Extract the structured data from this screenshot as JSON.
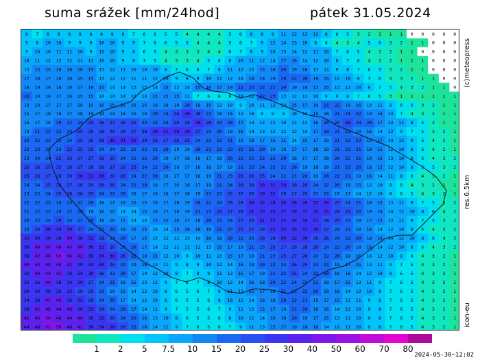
{
  "header": {
    "title": "suma srážek [mm/24hod]",
    "date": "pátek 31.05.2024"
  },
  "side_labels": {
    "credit": "(c)meteopress",
    "resolution": "res.6.5km",
    "model": "icon-eu"
  },
  "legend": {
    "labels": [
      "1",
      "2",
      "5",
      "7.5",
      "10",
      "15",
      "20",
      "25",
      "30",
      "40",
      "50",
      "60",
      "70",
      "80"
    ],
    "colors": [
      "#1ee39a",
      "#10e6c0",
      "#00e0ee",
      "#00c4fa",
      "#0aa6fb",
      "#1288f6",
      "#1a68f2",
      "#2a4ef0",
      "#3b34f0",
      "#5b22ee",
      "#7a18ea",
      "#9a12e4",
      "#c00ad8",
      "#e404d0",
      "#a90c98"
    ]
  },
  "timestamp": "2024-05-30~12:02",
  "map": {
    "region": "Česká republika",
    "value_grid_note": "precipitation totals printed per grid cell (mm)",
    "rows": [
      "8 7 8 8 8 8 8 8 9 8 7 6 6 5 5 4 4 4 4 5 6 8 8 9 11 12 13 12 8 6 5 3 2 1 1 1 0 0 0 0 0",
      "9 8 10 10 9 9 9 10 10 9 9 7 6 6 5 5 4 4 4 5 6 7 9 12 14 13 10 8 6 4 3 4 5 6 3 2 1 1 0 0 0",
      "9 10 10 11 11 10 9 10 10 9 8 6 5 4 3 3 3 4 4 6 7 8 9 10 13 14 12 11 10 7 6 5 4 3 2 1 1 0 0 0 0",
      "10 11 12 12 12 11 11 10 10 9 8 7 5 4 3 3 4 5 6 8 10 11 12 14 17 16 14 12 10 8 7 6 4 3 2 1 1 1 0 0 0",
      "13 15 15 16 18 16 15 13 12 11 10 10 10 8 7 6 6 7 8 11 12 13 15 18 20 19 16 13 11 9 8 7 6 5 3 2 1 1 0 0 0",
      "17 18 17 16 16 15 15 13 12 12 11 11 12 10 9 8 9 10 11 12 14 16 18 19 20 22 20 18 15 12 10 8 7 6 4 3 2 1 1 0 0",
      "18 19 19 18 18 17 16 15 14 14 13 13 14 15 13 14 15 16 17 19 21 23 22 21 20 19 18 17 15 13 12 10 8 7 5 4 3 2 1 1 0",
      "20 19 18 17 16 15 15 14 14 14 14 14 15 15 15 11 7 6 6 6 10 12 22 23 13 12 11 10 9 9 8 7 6 5 3 1 1 1 1 1 1",
      "18 18 17 17 17 16 15 15 15 15 15 15 16 18 18 20 18 15 12 10 9 10 11 12 13 15 17 19 21 22 19 16 13 11 8 6 5 3 2 1 1",
      "15 17 18 18 17 18 19 19 19 18 19 19 20 24 28 30 26 22 18 15 12 10 9 9 9 10 12 15 18 21 24 22 19 16 13 7 4 3 2 1 1",
      "16 17 19 20 22 24 25 26 27 26 25 23 23 24 26 28 30 28 24 20 17 14 12 11 10 11 13 16 20 24 26 24 20 17 14 11 8 5 3 1 1",
      "18 21 22 22 24 25 26 28 29 28 27 28 30 31 30 30 27 23 20 18 16 14 13 12 12 12 14 17 20 21 22 19 16 14 12 9 7 5 3 2 1",
      "20 22 23 23 24 25 26 28 30 31 30 29 28 27 26 25 24 23 22 21 19 18 17 16 15 14 15 17 19 21 23 22 19 17 14 12 9 6 4 2 1",
      "22 23 23 24 25 25 25 24 24 23 22 22 21 20 19 19 20 21 22 23 22 21 20 19 18 17 17 18 19 21 23 21 18 15 12 10 8 6 4 2 1",
      "23 24 24 25 26 27 27 26 25 24 23 22 20 19 17 16 16 17 18 20 22 23 22 21 20 18 17 17 18 20 22 21 19 16 13 10 8 6 4 3 2",
      "26 26 25 25 26 27 28 28 27 26 25 24 22 20 18 17 16 16 17 19 21 23 24 23 22 20 19 18 19 21 22 20 18 15 12 10 8 6 5 3 2",
      "25 26 27 28 29 30 31 30 28 26 24 22 20 18 17 17 18 19 21 23 25 26 25 24 22 21 20 19 20 22 21 19 16 14 11 8 6 4 3 2 1",
      "24 24 25 26 27 28 29 28 26 24 22 20 18 17 16 16 17 19 21 24 26 28 30 31 30 28 26 24 22 20 18 15 12 10 8 6 4 3 2 1 1",
      "23 23 24 25 26 26 25 24 22 20 18 17 16 16 17 18 19 21 23 25 27 29 30 31 29 27 25 23 21 19 17 14 12 10 8 6 5 4 3 2 1",
      "22 22 23 24 23 22 20 18 17 16 15 15 16 17 18 19 20 22 24 26 28 30 32 34 36 38 36 33 30 27 24 21 18 15 13 11 9 7 5 3 2",
      "21 22 23 24 22 20 18 16 15 14 14 15 16 17 18 19 21 23 25 27 29 31 33 35 37 39 37 34 31 28 25 22 19 16 14 12 10 8 6 4 2",
      "20 22 24 26 24 22 20 18 16 15 14 14 15 15 16 17 18 20 22 24 27 29 31 33 35 36 34 31 28 25 22 19 17 15 13 11 9 7 5 3 2",
      "22 26 30 34 30 27 24 22 20 18 16 15 14 14 15 16 18 19 21 23 25 27 29 31 33 35 33 30 27 24 21 18 16 14 12 10 8 6 4 3 2",
      "32 34 36 38 40 36 32 28 24 20 17 15 13 12 12 13 14 16 18 20 22 24 26 28 30 32 30 28 26 24 22 20 18 16 14 12 10 8 6 4 3",
      "36 40 44 48 44 40 36 32 28 24 20 17 14 12 11 11 12 13 15 17 19 21 23 25 27 29 28 26 24 22 20 18 16 14 12 10 8 6 4 3 2",
      "38 42 46 50 46 42 38 34 30 26 22 18 15 12 10 9 10 11 13 15 17 19 21 23 25 27 26 24 22 20 18 16 14 12 10 8 6 4 3 2 1",
      "40 44 48 46 42 38 34 30 26 22 19 16 13 11 9 8 9 10 12 14 16 18 20 22 24 26 25 23 21 19 17 15 13 11 9 7 5 4 3 2 1",
      "36 40 44 42 38 34 30 26 23 20 17 14 12 10 8 7 8 9 11 13 15 17 19 21 23 25 24 22 20 18 16 14 12 10 8 6 5 4 3 2 1",
      "32 36 40 38 34 30 27 24 21 18 15 13 11 9 7 6 7 8 10 12 14 16 18 20 22 24 23 21 19 17 15 13 11 9 7 6 5 4 3 2 1",
      "30 34 38 36 32 28 25 22 19 16 14 12 10 8 6 5 6 7 9 11 13 15 17 19 21 23 22 20 18 16 14 12 10 8 7 6 5 4 3 2 1",
      "34 38 42 40 36 32 28 24 20 17 14 12 10 8 6 5 5 6 8 10 12 14 16 18 20 22 21 19 17 15 13 11 9 8 7 6 5 4 3 2 1",
      "38 42 46 44 40 36 32 28 24 20 17 14 11 9 7 5 5 6 7 9 11 13 15 17 19 21 20 18 16 14 12 10 9 8 7 6 5 4 3 2 1",
      "42 46 50 48 44 40 36 32 28 24 20 16 13 10 8 6 5 5 6 8 10 12 14 16 18 20 19 17 15 13 11 10 9 8 7 6 5 4 3 2 1",
      "44 48 52 50 46 42 38 34 30 26 22 18 14 11 9 7 6 5 6 7 9 11 13 15 17 19 18 16 14 12 11 10 9 8 7 6 5 4 3 2 1"
    ]
  }
}
